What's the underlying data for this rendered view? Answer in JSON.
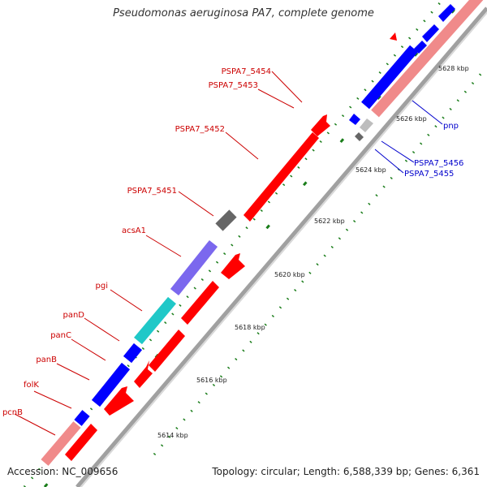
{
  "title": "Pseudomonas aeruginosa PA7, complete genome",
  "footer": {
    "accession": "Accession: NC_009656",
    "topology": "Topology: circular; Length: 6,588,339 bp; Genes: 6,361"
  },
  "colors": {
    "red": "#ff0000",
    "blue": "#0000ff",
    "pink": "#f08a8a",
    "cyan": "#20c8c8",
    "purple": "#7b68ee",
    "grey": "#777777",
    "lightgrey": "#bdbdbd",
    "tick": "#1a7d1a",
    "backbone": "#a0a0a0",
    "label_left": "#cc0000",
    "label_right": "#0000cc"
  },
  "kbp_labels": [
    "5614 kbp",
    "5616 kbp",
    "5618 kbp",
    "5620 kbp",
    "5622 kbp",
    "5624 kbp",
    "5626 kbp",
    "5628 kbp"
  ],
  "genes_left": [
    {
      "name": "pcnB",
      "color": "red"
    },
    {
      "name": "folK",
      "color": "red"
    },
    {
      "name": "panB",
      "color": "red"
    },
    {
      "name": "panC",
      "color": "red"
    },
    {
      "name": "panD",
      "color": "red"
    },
    {
      "name": "pgi",
      "color": "red"
    },
    {
      "name": "acsA1",
      "color": "red"
    },
    {
      "name": "PSPA7_5451",
      "color": "red"
    },
    {
      "name": "PSPA7_5452",
      "color": "red"
    },
    {
      "name": "PSPA7_5453",
      "color": "red"
    },
    {
      "name": "PSPA7_5454",
      "color": "red"
    }
  ],
  "genes_right": [
    {
      "name": "pnp",
      "color": "blue"
    },
    {
      "name": "PSPA7_5456",
      "color": "blue"
    },
    {
      "name": "PSPA7_5455",
      "color": "blue"
    }
  ]
}
